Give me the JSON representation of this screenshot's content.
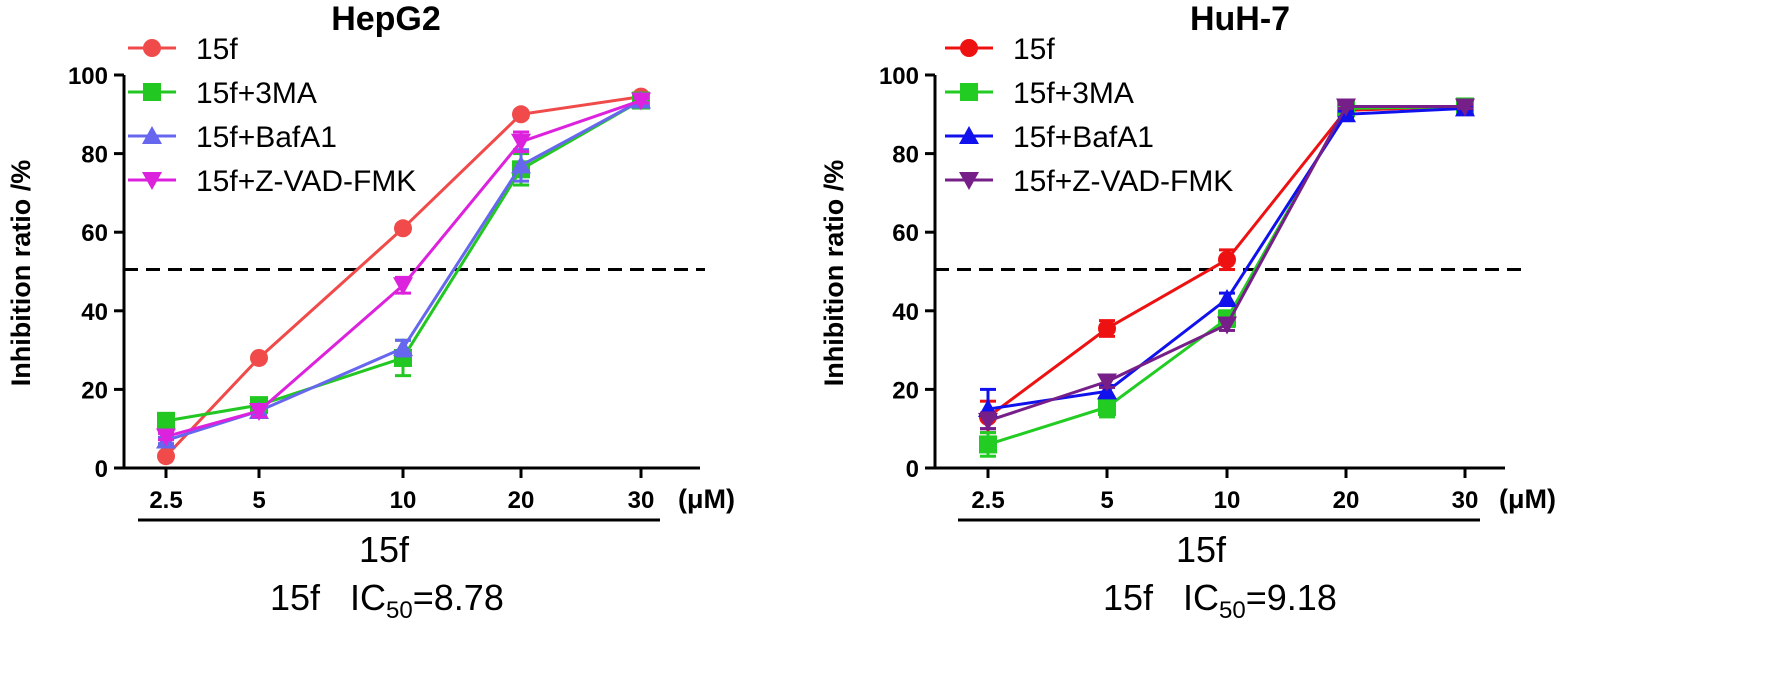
{
  "chart_data": [
    {
      "type": "line",
      "title": "HepG2",
      "ylabel": "Inhibition ratio /%",
      "ylim": [
        0,
        100
      ],
      "yticks": [
        "0",
        "20",
        "40",
        "60",
        "80",
        "100"
      ],
      "categories": [
        "2.5",
        "5",
        "10",
        "20",
        "30"
      ],
      "unit": "(μM)",
      "xgroup_label": "15f",
      "ic50_compound": "15f",
      "ic50_prefix": "IC",
      "ic50_sub": "50",
      "ic50_value": "=8.78",
      "reference_line": 50.5,
      "series": [
        {
          "name": "15f",
          "color": "#f04a4a",
          "marker": "circle",
          "values": [
            3,
            28,
            61,
            90,
            94.5
          ],
          "errors": [
            0.5,
            0.5,
            0.8,
            0.8,
            0.5
          ]
        },
        {
          "name": "15f+3MA",
          "color": "#22c722",
          "marker": "square",
          "values": [
            12,
            16,
            28,
            76,
            93.5
          ],
          "errors": [
            0.8,
            1.5,
            4.5,
            4,
            0.6
          ]
        },
        {
          "name": "15f+BafA1",
          "color": "#6666ee",
          "marker": "triangle-up",
          "values": [
            7,
            14.5,
            30.5,
            77,
            93.5
          ],
          "errors": [
            0.8,
            1,
            2,
            4,
            0.6
          ]
        },
        {
          "name": "15f+Z-VAD-FMK",
          "color": "#dd22dd",
          "marker": "triangle-down",
          "values": [
            8,
            14.5,
            46.5,
            83,
            93.5
          ],
          "errors": [
            0.8,
            1.5,
            2,
            2.5,
            0.6
          ]
        }
      ]
    },
    {
      "type": "line",
      "title": "HuH-7",
      "ylabel": "Inhibition ratio /%",
      "ylim": [
        0,
        100
      ],
      "yticks": [
        "0",
        "20",
        "40",
        "60",
        "80",
        "100"
      ],
      "categories": [
        "2.5",
        "5",
        "10",
        "20",
        "30"
      ],
      "unit": "(μM)",
      "xgroup_label": "15f",
      "ic50_compound": "15f",
      "ic50_prefix": "IC",
      "ic50_sub": "50",
      "ic50_value": "=9.18",
      "reference_line": 50.5,
      "series": [
        {
          "name": "15f",
          "color": "#ee1111",
          "marker": "circle",
          "values": [
            13,
            35.5,
            53,
            91,
            92
          ],
          "errors": [
            4,
            2,
            2.5,
            0.8,
            0.5
          ]
        },
        {
          "name": "15f+3MA",
          "color": "#22cc22",
          "marker": "square",
          "values": [
            6,
            15.5,
            38,
            91.5,
            92
          ],
          "errors": [
            3,
            2.5,
            2,
            0.8,
            0.5
          ]
        },
        {
          "name": "15f+BafA1",
          "color": "#1111ee",
          "marker": "triangle-up",
          "values": [
            15,
            19.5,
            43,
            90,
            91.5
          ],
          "errors": [
            5,
            1.5,
            1.5,
            0.8,
            0.5
          ]
        },
        {
          "name": "15f+Z-VAD-FMK",
          "color": "#771f88",
          "marker": "triangle-down",
          "values": [
            12,
            22,
            36.5,
            92,
            92
          ],
          "errors": [
            2,
            1.5,
            1.5,
            0.5,
            0.5
          ]
        }
      ]
    }
  ]
}
